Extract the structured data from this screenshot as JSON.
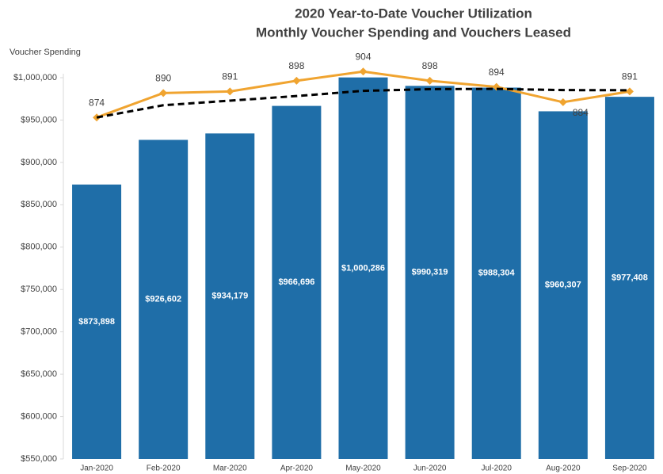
{
  "chart_data": {
    "type": "bar",
    "title": "2020 Year-to-Date Voucher Utilization",
    "subtitle": "Monthly Voucher Spending and Vouchers Leased",
    "y_label": "Voucher Spending",
    "categories": [
      "Jan-2020",
      "Feb-2020",
      "Mar-2020",
      "Apr-2020",
      "May-2020",
      "Jun-2020",
      "Jul-2020",
      "Aug-2020",
      "Sep-2020"
    ],
    "series": [
      {
        "type": "bar",
        "color": "#1f6ea8",
        "values": [
          873898,
          926602,
          934179,
          966696,
          1000286,
          990319,
          988304,
          960307,
          977408
        ],
        "value_labels": [
          "$873,898",
          "$926,602",
          "$934,179",
          "$966,696",
          "$1,000,286",
          "$990,319",
          "$988,304",
          "$960,307",
          "$977,408"
        ]
      },
      {
        "type": "line",
        "axis": "y2",
        "color": "#f0a430",
        "values": [
          874,
          890,
          891,
          898,
          904,
          898,
          894,
          884,
          891
        ]
      },
      {
        "type": "line",
        "axis": "y2",
        "color": "#000000",
        "dashed": true,
        "values": [
          874,
          882,
          885,
          888,
          891.4,
          892.5,
          892.7,
          891.9,
          891.8
        ]
      }
    ],
    "ylim": [
      550000,
      1000000
    ],
    "yticks": [
      {
        "value": 550000,
        "label": "$550,000"
      },
      {
        "value": 600000,
        "label": "$600,000"
      },
      {
        "value": 650000,
        "label": "$650,000"
      },
      {
        "value": 700000,
        "label": "$700,000"
      },
      {
        "value": 750000,
        "label": "$750,000"
      },
      {
        "value": 800000,
        "label": "$800,000"
      },
      {
        "value": 850000,
        "label": "$850,000"
      },
      {
        "value": 900000,
        "label": "$900,000"
      },
      {
        "value": 950000,
        "label": "$950,000"
      },
      {
        "value": 1000000,
        "label": "$1,000,000"
      }
    ],
    "y2lim": [
      651,
      900
    ],
    "grid": false
  }
}
